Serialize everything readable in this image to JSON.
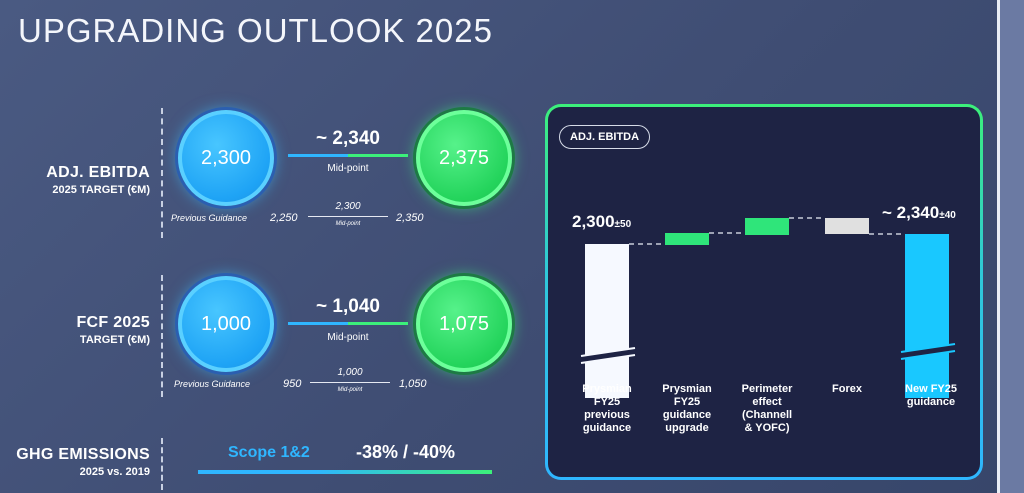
{
  "title": "UPGRADING OUTLOOK 2025",
  "ebitda": {
    "label": "ADJ. EBITDA",
    "sublabel": "2025 TARGET (€M)",
    "previous_value": "2,300",
    "new_value": "2,375",
    "midpoint_value": "~ 2,340",
    "midpoint_label": "Mid-point",
    "previous_guidance_label": "Previous Guidance",
    "prev_low": "2,250",
    "prev_mid": "2,300",
    "prev_mid_label": "Mid-point",
    "prev_high": "2,350"
  },
  "fcf": {
    "label": "FCF 2025",
    "sublabel": "TARGET (€M)",
    "previous_value": "1,000",
    "new_value": "1,075",
    "midpoint_value": "~ 1,040",
    "midpoint_label": "Mid-point",
    "previous_guidance_label": "Previous Guidance",
    "prev_low": "950",
    "prev_mid": "1,000",
    "prev_mid_label": "Mid-point",
    "prev_high": "1,050"
  },
  "ghg": {
    "label": "GHG EMISSIONS",
    "sublabel": "2025 vs. 2019",
    "scope_label": "Scope 1&2",
    "scope_value": "-38% / -40%"
  },
  "chart": {
    "pill": "ADJ. EBITDA",
    "start_value": "2,300",
    "start_range": "±50",
    "end_value": "~ 2,340",
    "end_range": "±40",
    "categories": [
      [
        "Prysmian",
        "FY25",
        "previous",
        "guidance"
      ],
      [
        "Prysmian",
        "FY25",
        "guidance",
        "upgrade"
      ],
      [
        "Perimeter",
        "effect",
        "(Channell",
        "& YOFC)"
      ],
      [
        "Forex"
      ],
      [
        "New FY25",
        "guidance"
      ]
    ]
  },
  "colors": {
    "blue": "#2fb6ff",
    "green": "#3cf07a",
    "panel": "#1e2344",
    "grey_bar": "#e0e0e0",
    "white_bar": "#f6f9ff"
  }
}
